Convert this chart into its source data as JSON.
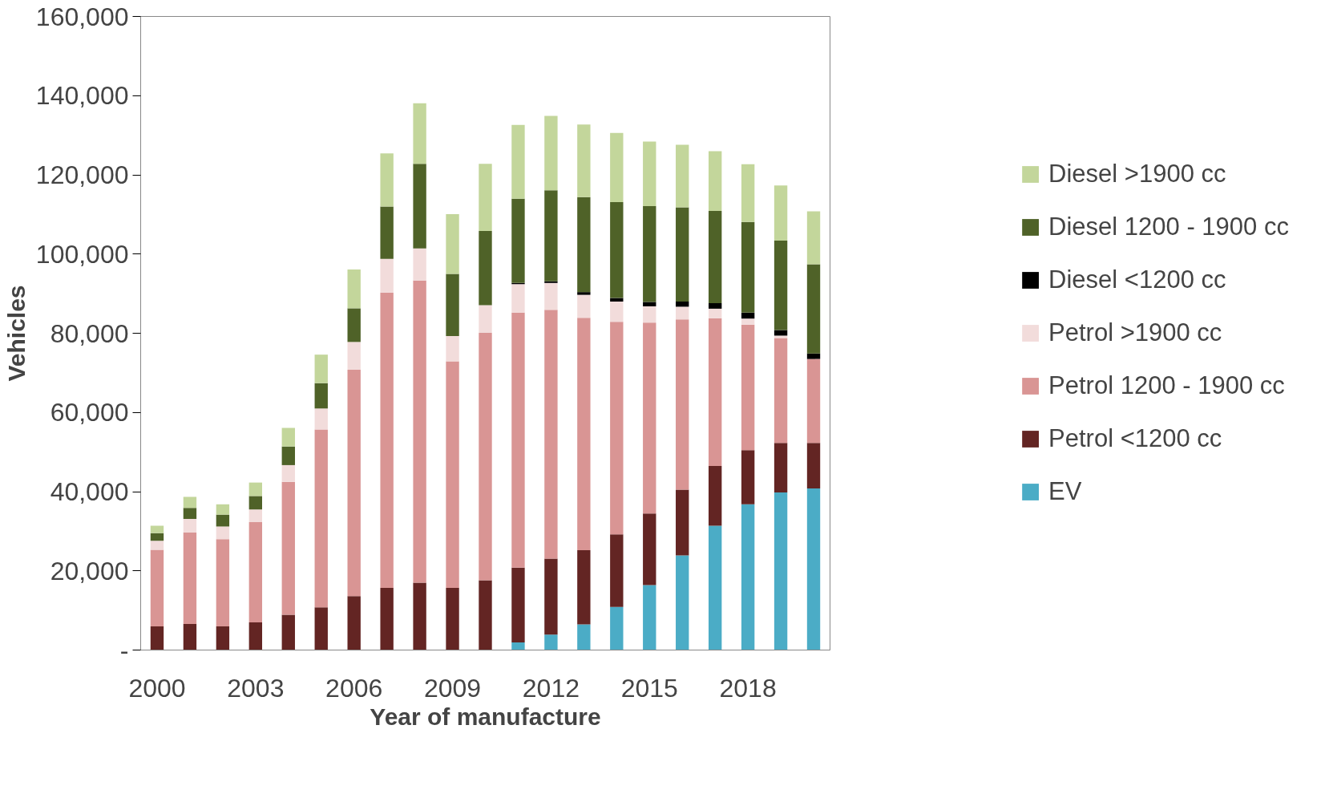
{
  "chart_data": {
    "type": "bar",
    "stacked": true,
    "xlabel": "Year of manufacture",
    "ylabel": "Vehicles",
    "categories": [
      "2000",
      null,
      null,
      "2003",
      null,
      null,
      "2006",
      null,
      null,
      "2009",
      null,
      null,
      "2012",
      null,
      null,
      "2015",
      null,
      null,
      "2018",
      null,
      null
    ],
    "series": [
      {
        "name": "EV",
        "color": "#4bacc6",
        "values": [
          0,
          0,
          0,
          0,
          0,
          0,
          0,
          0,
          0,
          0,
          0,
          1900,
          3900,
          6500,
          10900,
          16400,
          23900,
          31400,
          36800,
          39800,
          40800
        ]
      },
      {
        "name": "Petrol <1200 cc",
        "color": "#632523",
        "values": [
          6000,
          6600,
          6000,
          7000,
          8900,
          10800,
          13600,
          15700,
          17000,
          15700,
          17600,
          18900,
          19200,
          18700,
          18300,
          18100,
          16600,
          15100,
          13700,
          12500,
          11500
        ]
      },
      {
        "name": "Petrol 1200 - 1900 cc",
        "color": "#d99594",
        "values": [
          19300,
          23100,
          22000,
          25300,
          33600,
          44900,
          57200,
          74600,
          76300,
          57200,
          62500,
          64400,
          62800,
          58700,
          53700,
          48200,
          43000,
          37300,
          31700,
          26500,
          21200
        ]
      },
      {
        "name": "Petrol >1900 cc",
        "color": "#f2dcdb",
        "values": [
          2300,
          3400,
          3200,
          3200,
          4200,
          5300,
          7000,
          8500,
          8100,
          6400,
          7000,
          7200,
          6800,
          5800,
          5100,
          4100,
          3200,
          2400,
          1500,
          600,
          0
        ]
      },
      {
        "name": "Diesel <1200 cc",
        "color": "#000000",
        "values": [
          0,
          0,
          0,
          0,
          0,
          0,
          0,
          0,
          0,
          0,
          0,
          300,
          400,
          700,
          900,
          1100,
          1300,
          1400,
          1500,
          1400,
          1400
        ]
      },
      {
        "name": "Diesel 1200 - 1900 cc",
        "color": "#4f6228",
        "values": [
          1900,
          2800,
          3000,
          3400,
          4700,
          6400,
          8500,
          13200,
          21400,
          15700,
          18700,
          21300,
          23000,
          24000,
          24200,
          24200,
          23800,
          23300,
          22900,
          22600,
          22500
        ]
      },
      {
        "name": "Diesel >1900 cc",
        "color": "#c3d69b",
        "values": [
          1900,
          2800,
          2600,
          3400,
          4700,
          7200,
          9800,
          13400,
          15300,
          15100,
          17000,
          18600,
          18800,
          18300,
          17500,
          16300,
          15800,
          15100,
          14600,
          13900,
          13400
        ]
      }
    ],
    "ylim": [
      0,
      160000
    ],
    "yticks": [
      {
        "value": 0,
        "label": "-"
      },
      {
        "value": 20000,
        "label": "20,000"
      },
      {
        "value": 40000,
        "label": "40,000"
      },
      {
        "value": 60000,
        "label": "60,000"
      },
      {
        "value": 80000,
        "label": "80,000"
      },
      {
        "value": 100000,
        "label": "100,000"
      },
      {
        "value": 120000,
        "label": "120,000"
      },
      {
        "value": 140000,
        "label": "140,000"
      },
      {
        "value": 160000,
        "label": "160,000"
      }
    ],
    "legend": "right",
    "grid": false
  }
}
